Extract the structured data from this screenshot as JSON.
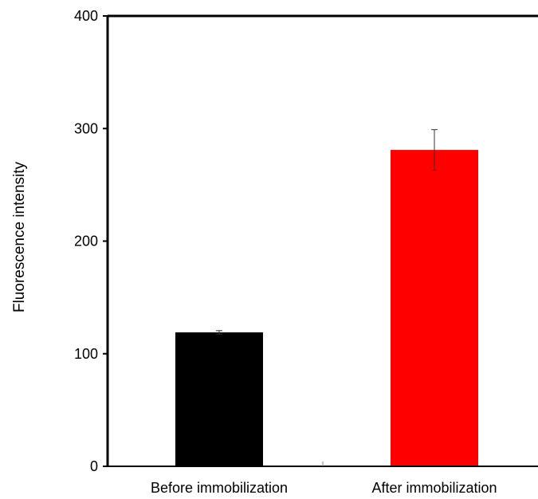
{
  "chart_data": {
    "type": "bar",
    "title": "",
    "xlabel": "",
    "ylabel": "Fluorescence  intensity",
    "ylim": [
      0,
      400
    ],
    "yticks": [
      0,
      100,
      200,
      300,
      400
    ],
    "grid": false,
    "legend": "none",
    "categories": [
      "Before immobilization",
      "After immobilization"
    ],
    "values": [
      119,
      281
    ],
    "errors": [
      1.5,
      18
    ],
    "colors": [
      "#000000",
      "#ff0000"
    ]
  }
}
